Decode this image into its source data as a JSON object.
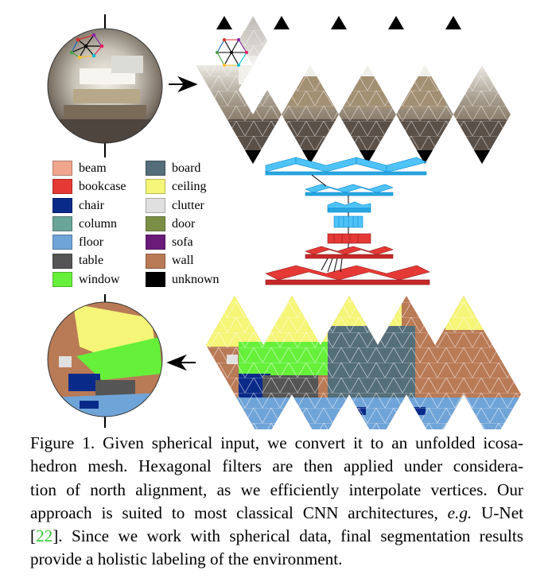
{
  "legend": {
    "left": [
      {
        "label": "beam",
        "color": "#f0a58f"
      },
      {
        "label": "bookcase",
        "color": "#e53935"
      },
      {
        "label": "chair",
        "color": "#0a2a8a"
      },
      {
        "label": "column",
        "color": "#6aa59a"
      },
      {
        "label": "floor",
        "color": "#6fa4d8"
      },
      {
        "label": "table",
        "color": "#555555"
      },
      {
        "label": "window",
        "color": "#66f03a"
      }
    ],
    "right": [
      {
        "label": "board",
        "color": "#546e7a"
      },
      {
        "label": "ceiling",
        "color": "#f5f577"
      },
      {
        "label": "clutter",
        "color": "#e0e0e0"
      },
      {
        "label": "door",
        "color": "#7a8f45"
      },
      {
        "label": "sofa",
        "color": "#6a1b7a"
      },
      {
        "label": "wall",
        "color": "#b97a56"
      },
      {
        "label": "unknown",
        "color": "#000000"
      }
    ]
  },
  "caption": {
    "l1": "Figure 1. Given spherical input, we convert it to an unfolded icosa-",
    "l2": "hedron mesh. Hexagonal filters are then applied under considera-",
    "l3": "tion of north alignment, as we efficiently interpolate vertices. Our",
    "l4a": "approach is suited to most classical CNN architectures, ",
    "l4b": "e.g.",
    "l4c": " U-Net",
    "l5a": "[",
    "l5b": "22",
    "l5c": "]. Since we work with spherical data, final segmentation results",
    "l6": "provide a holistic labeling of the environment."
  }
}
